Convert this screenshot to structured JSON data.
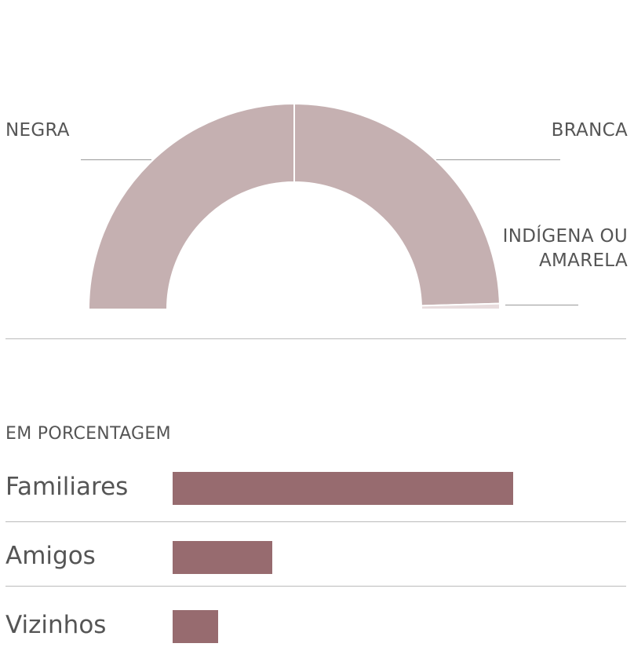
{
  "chart_data": [
    {
      "type": "pie",
      "variant": "semi-donut",
      "slices": [
        {
          "label": "NEGRA",
          "value": 50.0,
          "color": "#c5b0b1"
        },
        {
          "label": "BRANCA",
          "value": 49.1,
          "color": "#c5b0b1"
        },
        {
          "label": "INDÍGENA OU AMARELA",
          "label_lines": [
            "INDÍGENA OU",
            "AMARELA"
          ],
          "value": 0.9,
          "color": "#e8dcdd"
        }
      ]
    },
    {
      "type": "bar",
      "orientation": "horizontal",
      "subtitle": "EM PORCENTAGEM",
      "categories": [
        "Familiares",
        "Amigos",
        "Vizinhos"
      ],
      "values": [
        75,
        22,
        10
      ],
      "xlim": [
        0,
        100
      ],
      "color": "#976b6f"
    }
  ]
}
